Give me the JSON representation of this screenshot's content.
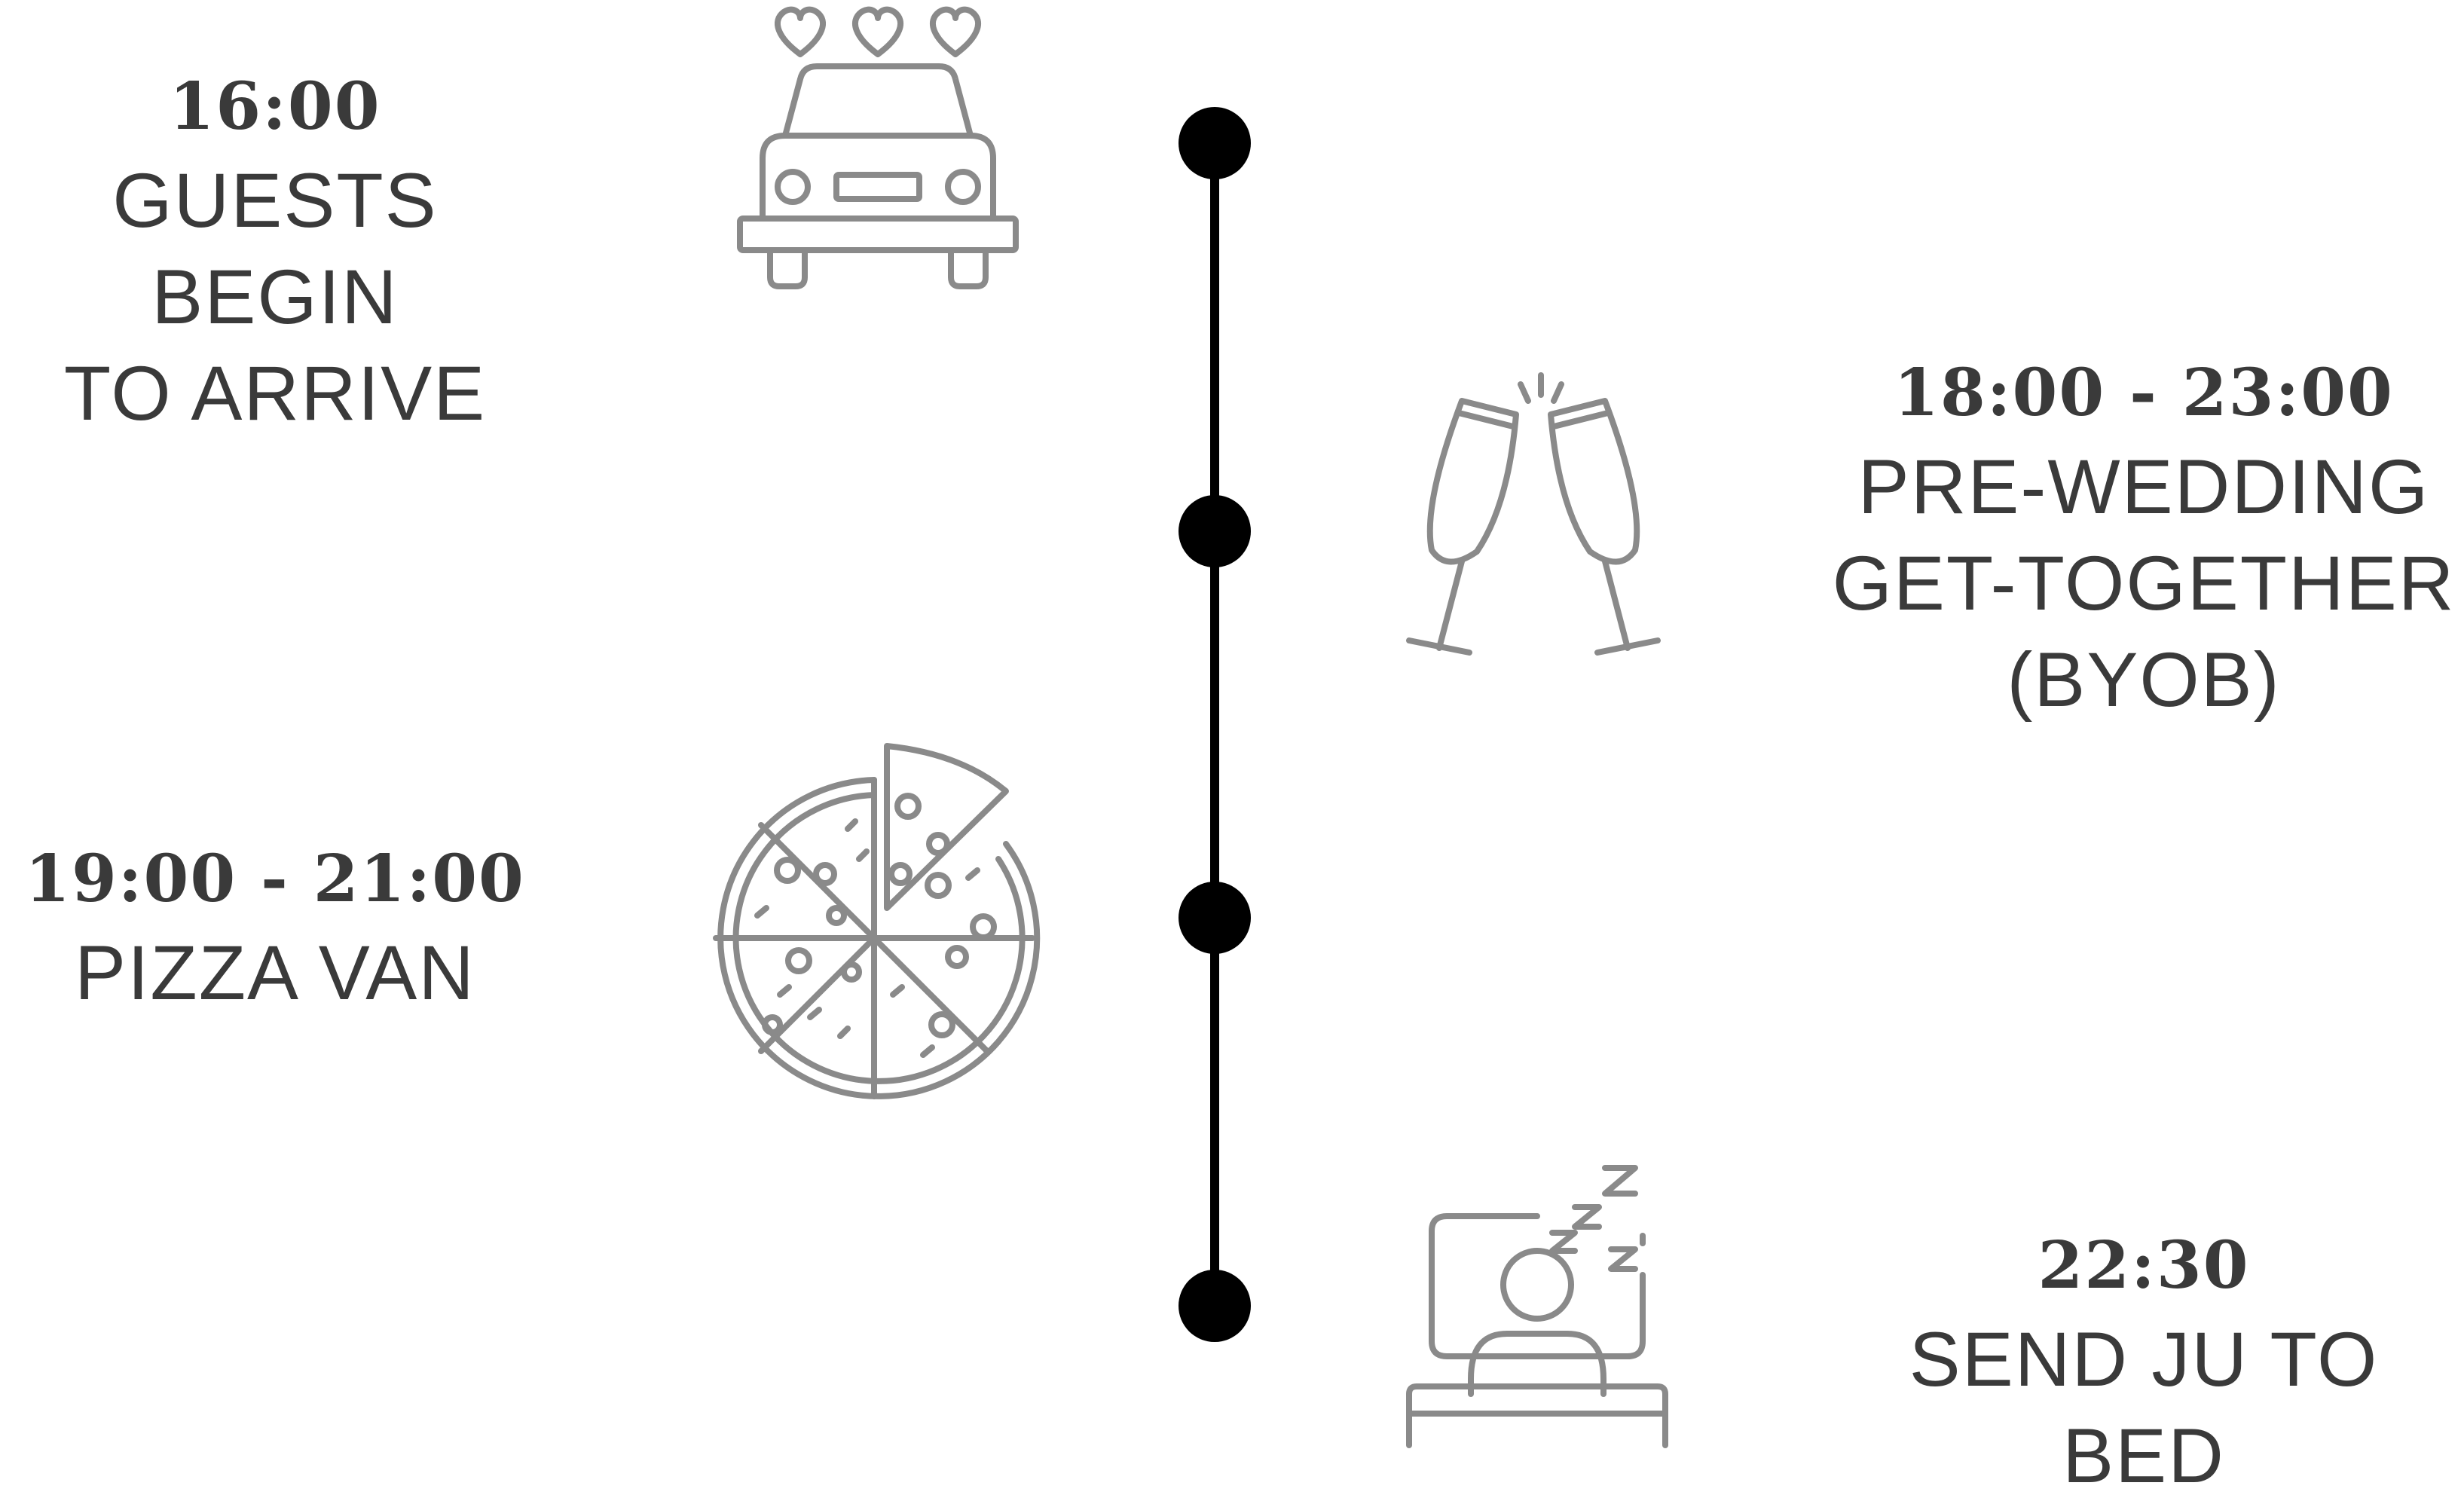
{
  "timeline": {
    "events": [
      {
        "time": "16:00",
        "lines": [
          "GUESTS BEGIN",
          "TO ARRIVE"
        ],
        "icon": "wedding-car-icon"
      },
      {
        "time": "18:00 - 23:00",
        "lines": [
          "PRE-WEDDING",
          "GET-TOGETHER",
          "(BYOB)"
        ],
        "icon": "champagne-toast-icon"
      },
      {
        "time": "19:00 - 21:00",
        "lines": [
          "PIZZA VAN"
        ],
        "icon": "pizza-icon"
      },
      {
        "time": "22:30",
        "lines": [
          "SEND JU TO BED"
        ],
        "icon": "sleeping-in-bed-icon"
      }
    ]
  },
  "colors": {
    "text": "#3a3a3a",
    "icon": "#8a8a8a",
    "timeline": "#000000",
    "background": "#ffffff"
  }
}
